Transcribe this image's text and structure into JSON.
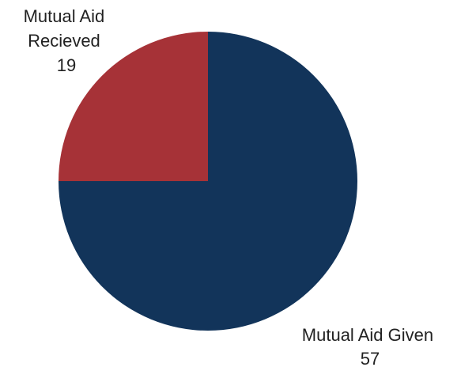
{
  "chart_data": {
    "type": "pie",
    "title": "",
    "slices": [
      {
        "label_lines": [
          "Mutual Aid Given",
          "57"
        ],
        "value": 57,
        "color": "#12345a"
      },
      {
        "label_lines": [
          "Mutual Aid",
          "Recieved",
          "19"
        ],
        "value": 19,
        "color": "#a63237"
      }
    ]
  }
}
